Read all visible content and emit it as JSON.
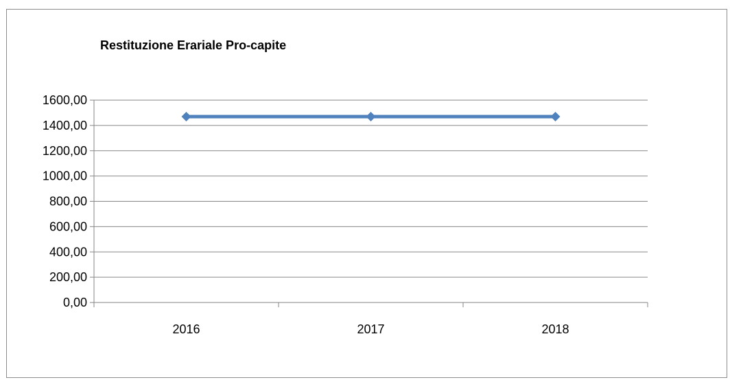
{
  "chart_data": {
    "type": "line",
    "title": "Restituzione Erariale Pro-capite",
    "xlabel": "",
    "ylabel": "",
    "categories": [
      "2016",
      "2017",
      "2018"
    ],
    "series": [
      {
        "values": [
          1470,
          1470,
          1470
        ],
        "color": "#4f81bd",
        "marker": "diamond"
      }
    ],
    "ylim": [
      0,
      1600
    ],
    "yticks": [
      0,
      200,
      400,
      600,
      800,
      1000,
      1200,
      1400,
      1600
    ],
    "ytick_labels": [
      "0,00",
      "200,00",
      "400,00",
      "600,00",
      "800,00",
      "1000,00",
      "1200,00",
      "1400,00",
      "1600,00"
    ],
    "grid": true,
    "legend": "none"
  }
}
